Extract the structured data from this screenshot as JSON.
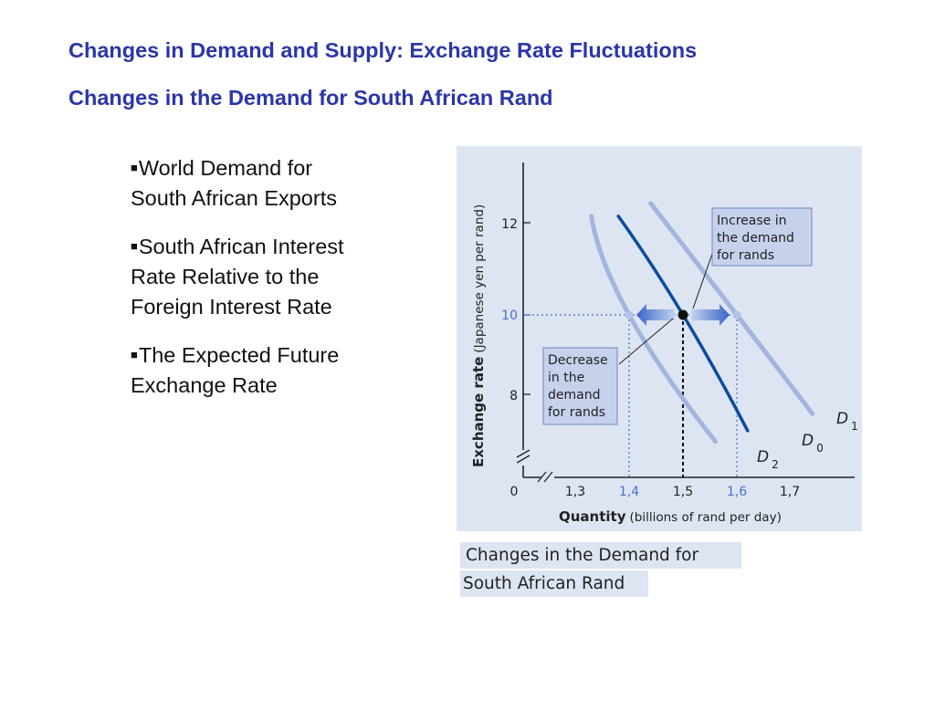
{
  "slide": {
    "title": "Changes in Demand and Supply: Exchange Rate Fluctuations",
    "subtitle": "Changes in the Demand for South African Rand",
    "bullets": [
      {
        "line1": "World Demand for",
        "line2": "South African Exports"
      },
      {
        "line1": "South African Interest",
        "line2": "Rate Relative to the",
        "line3": "Foreign Interest Rate"
      },
      {
        "line1": "The Expected Future",
        "line2": "Exchange Rate"
      }
    ],
    "caption": {
      "line1": "Changes in the Demand for",
      "line2": "South African Rand"
    }
  },
  "colors": {
    "title": "#2a36a8",
    "chart_bg": "#dde5f2",
    "d0_curve": "#0a4d9c",
    "shifted_curves": "#a3b5de",
    "highlight_tick": "#4a6fcf",
    "callout_box": "#c6d1ec"
  },
  "chart_data": {
    "type": "line",
    "xlabel": "Quantity",
    "xlabel_note": "(billions of rand per day)",
    "ylabel": "Exchange rate",
    "ylabel_note": "(Japanese yen per rand)",
    "x_tick_labels": [
      "0",
      "1,3",
      "1,4",
      "1,5",
      "1,6",
      "1,7"
    ],
    "x_ticks_highlighted": [
      "1,4",
      "1,6"
    ],
    "y_tick_labels": [
      "8",
      "10",
      "12"
    ],
    "y_ticks_highlighted": [
      "10"
    ],
    "xlim": [
      1.2,
      1.78
    ],
    "ylim": [
      6.7,
      13.4
    ],
    "axis_break": true,
    "series": [
      {
        "name": "D0",
        "label_main": "D",
        "label_sub": "0",
        "points": [
          [
            1.38,
            12.3
          ],
          [
            1.5,
            10.0
          ],
          [
            1.62,
            7.3
          ]
        ]
      },
      {
        "name": "D1",
        "label_main": "D",
        "label_sub": "1",
        "points": [
          [
            1.44,
            12.6
          ],
          [
            1.6,
            10.0
          ],
          [
            1.74,
            7.7
          ]
        ]
      },
      {
        "name": "D2",
        "label_main": "D",
        "label_sub": "2",
        "points": [
          [
            1.33,
            12.3
          ],
          [
            1.4,
            10.0
          ],
          [
            1.56,
            7.05
          ]
        ]
      }
    ],
    "equilibrium": {
      "x": 1.5,
      "y": 10
    },
    "shift_points": [
      {
        "x": 1.4,
        "y": 10
      },
      {
        "x": 1.6,
        "y": 10
      }
    ],
    "annotations": {
      "increase": [
        "Increase in",
        "the demand",
        "for rands"
      ],
      "decrease": [
        "Decrease",
        "in the",
        "demand",
        "for rands"
      ]
    }
  }
}
